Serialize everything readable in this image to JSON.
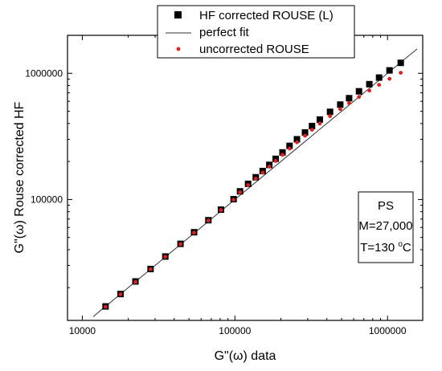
{
  "chart_data": {
    "type": "scatter",
    "x_scale": "log",
    "y_scale": "log",
    "xlim": [
      8000,
      1700000
    ],
    "ylim": [
      11000,
      2000000
    ],
    "xlabel": "G\"(ω) data",
    "ylabel": "G\"(ω) Rouse corrected HF",
    "x_ticks": [
      10000,
      100000,
      1000000
    ],
    "x_tick_labels": [
      "10000",
      "100000",
      "1000000"
    ],
    "y_ticks": [
      100000,
      1000000
    ],
    "y_tick_labels": [
      "100000",
      "1000000"
    ],
    "grid": false,
    "legend_position": "top-center",
    "annotation": {
      "line1": "PS",
      "line2": "M=27,000",
      "line3_prefix": "T=130 ",
      "line3_sup": "o",
      "line3_suffix": "C"
    },
    "series": [
      {
        "name": "HF corrected ROUSE (L)",
        "marker": "square",
        "color": "#000000",
        "x": [
          14200,
          17800,
          22300,
          28000,
          35000,
          44000,
          54000,
          67000,
          81000,
          98000,
          108000,
          122000,
          137000,
          152000,
          168000,
          185000,
          205000,
          228000,
          255000,
          288000,
          320000,
          360000,
          420000,
          490000,
          560000,
          650000,
          760000,
          880000,
          1030000,
          1220000
        ],
        "y": [
          14200,
          17800,
          22400,
          28100,
          35300,
          44500,
          55000,
          68500,
          83000,
          100500,
          116000,
          133000,
          150000,
          168000,
          188000,
          210000,
          236000,
          266000,
          300000,
          340000,
          382000,
          430000,
          495000,
          565000,
          635000,
          720000,
          820000,
          925000,
          1055000,
          1210000
        ]
      },
      {
        "name": "uncorrected ROUSE",
        "marker": "circle",
        "color": "#e02020",
        "x": [
          14200,
          17800,
          22300,
          28000,
          35000,
          44000,
          54000,
          67000,
          81000,
          98000,
          108000,
          122000,
          137000,
          152000,
          168000,
          185000,
          205000,
          228000,
          255000,
          288000,
          320000,
          360000,
          420000,
          490000,
          560000,
          650000,
          760000,
          880000,
          1030000,
          1220000
        ],
        "y": [
          14100,
          17700,
          22200,
          28000,
          35100,
          44200,
          54600,
          68000,
          82300,
          99500,
          114000,
          130000,
          146000,
          163000,
          182000,
          202000,
          226000,
          253000,
          284000,
          320000,
          357000,
          400000,
          458000,
          520000,
          580000,
          650000,
          730000,
          810000,
          905000,
          1010000
        ]
      },
      {
        "name": "perfect fit",
        "marker": "line",
        "color": "#333333",
        "x": [
          11800,
          1560000
        ],
        "y": [
          11800,
          1560000
        ]
      }
    ]
  }
}
